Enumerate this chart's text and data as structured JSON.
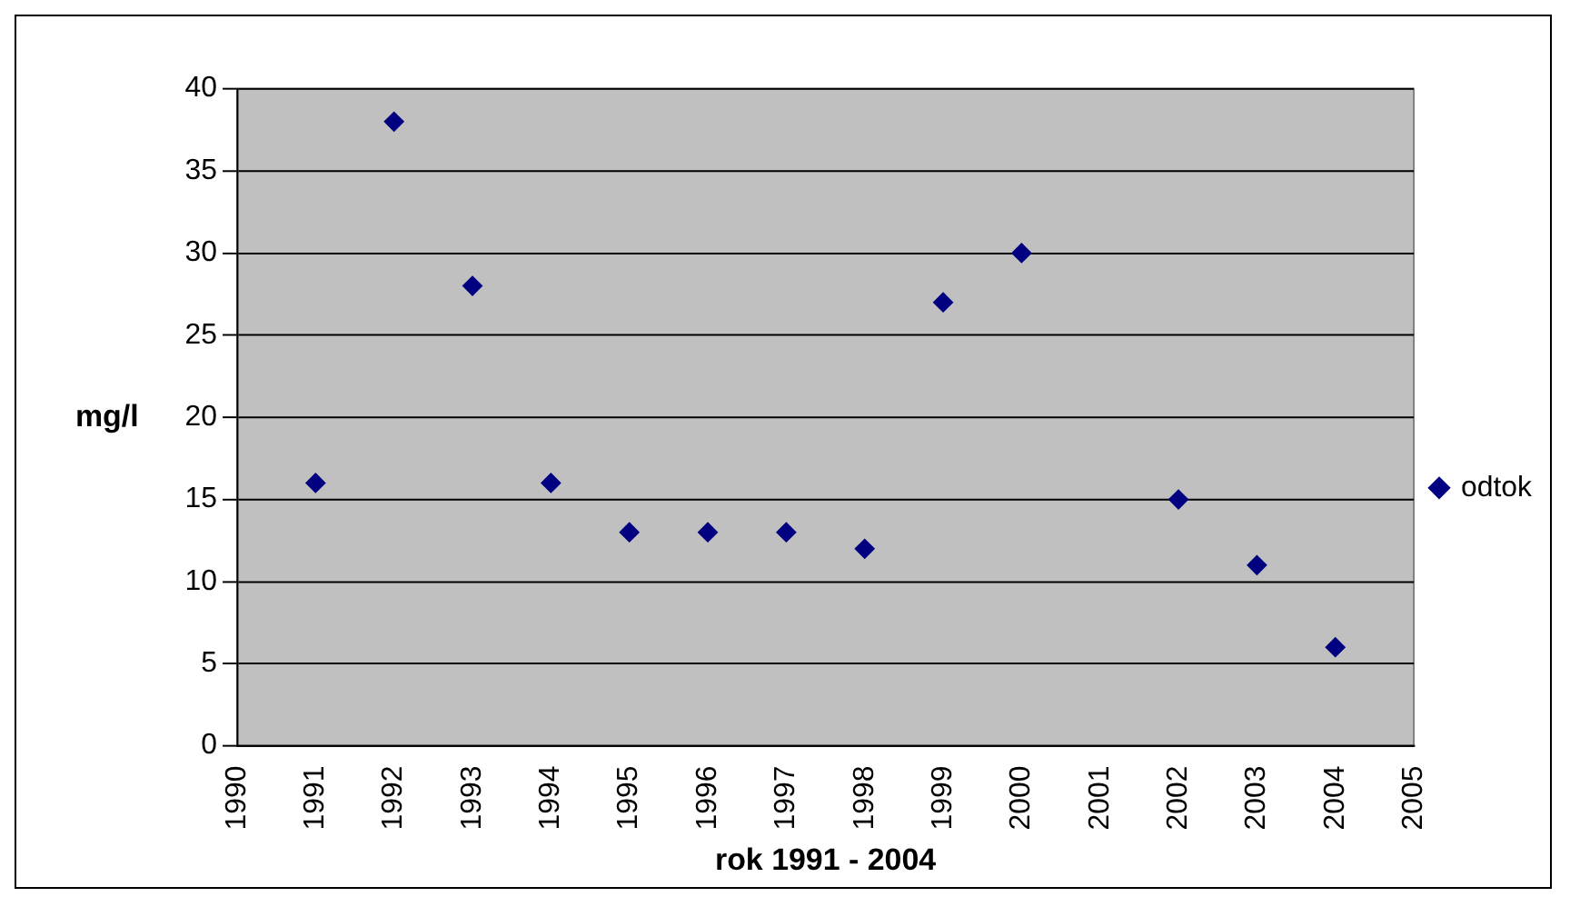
{
  "chart_data": {
    "type": "scatter",
    "xlabel": "rok 1991 - 2004",
    "ylabel": "mg/l",
    "x": [
      1991,
      1992,
      1993,
      1994,
      1995,
      1996,
      1997,
      1998,
      1999,
      2000,
      2002,
      2003,
      2004
    ],
    "series": [
      {
        "name": "odtok",
        "color": "#000080",
        "values": [
          16,
          38,
          28,
          16,
          13,
          13,
          13,
          12,
          27,
          30,
          15,
          11,
          6
        ]
      }
    ],
    "xlim": [
      1990,
      2005
    ],
    "xticks": [
      1990,
      1991,
      1992,
      1993,
      1994,
      1995,
      1996,
      1997,
      1998,
      1999,
      2000,
      2001,
      2002,
      2003,
      2004,
      2005
    ],
    "ylim": [
      0,
      40
    ],
    "yticks": [
      0,
      5,
      10,
      15,
      20,
      25,
      30,
      35,
      40
    ],
    "grid": "y",
    "legend": "right",
    "marker": "diamond"
  }
}
